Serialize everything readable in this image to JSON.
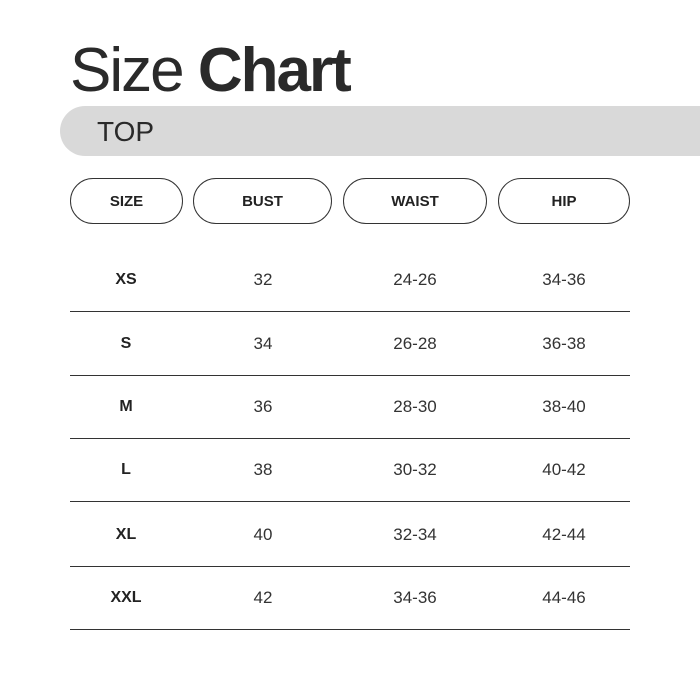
{
  "title": {
    "light": "Size",
    "bold": "Chart"
  },
  "section": "TOP",
  "chart_data": {
    "type": "table",
    "columns": [
      "SIZE",
      "BUST",
      "WAIST",
      "HIP"
    ],
    "rows": [
      [
        "XS",
        "32",
        "24-26",
        "34-36"
      ],
      [
        "S",
        "34",
        "26-28",
        "36-38"
      ],
      [
        "M",
        "36",
        "28-30",
        "38-40"
      ],
      [
        "L",
        "38",
        "30-32",
        "40-42"
      ],
      [
        "XL",
        "40",
        "32-34",
        "42-44"
      ],
      [
        "XXL",
        "42",
        "34-36",
        "44-46"
      ]
    ]
  }
}
